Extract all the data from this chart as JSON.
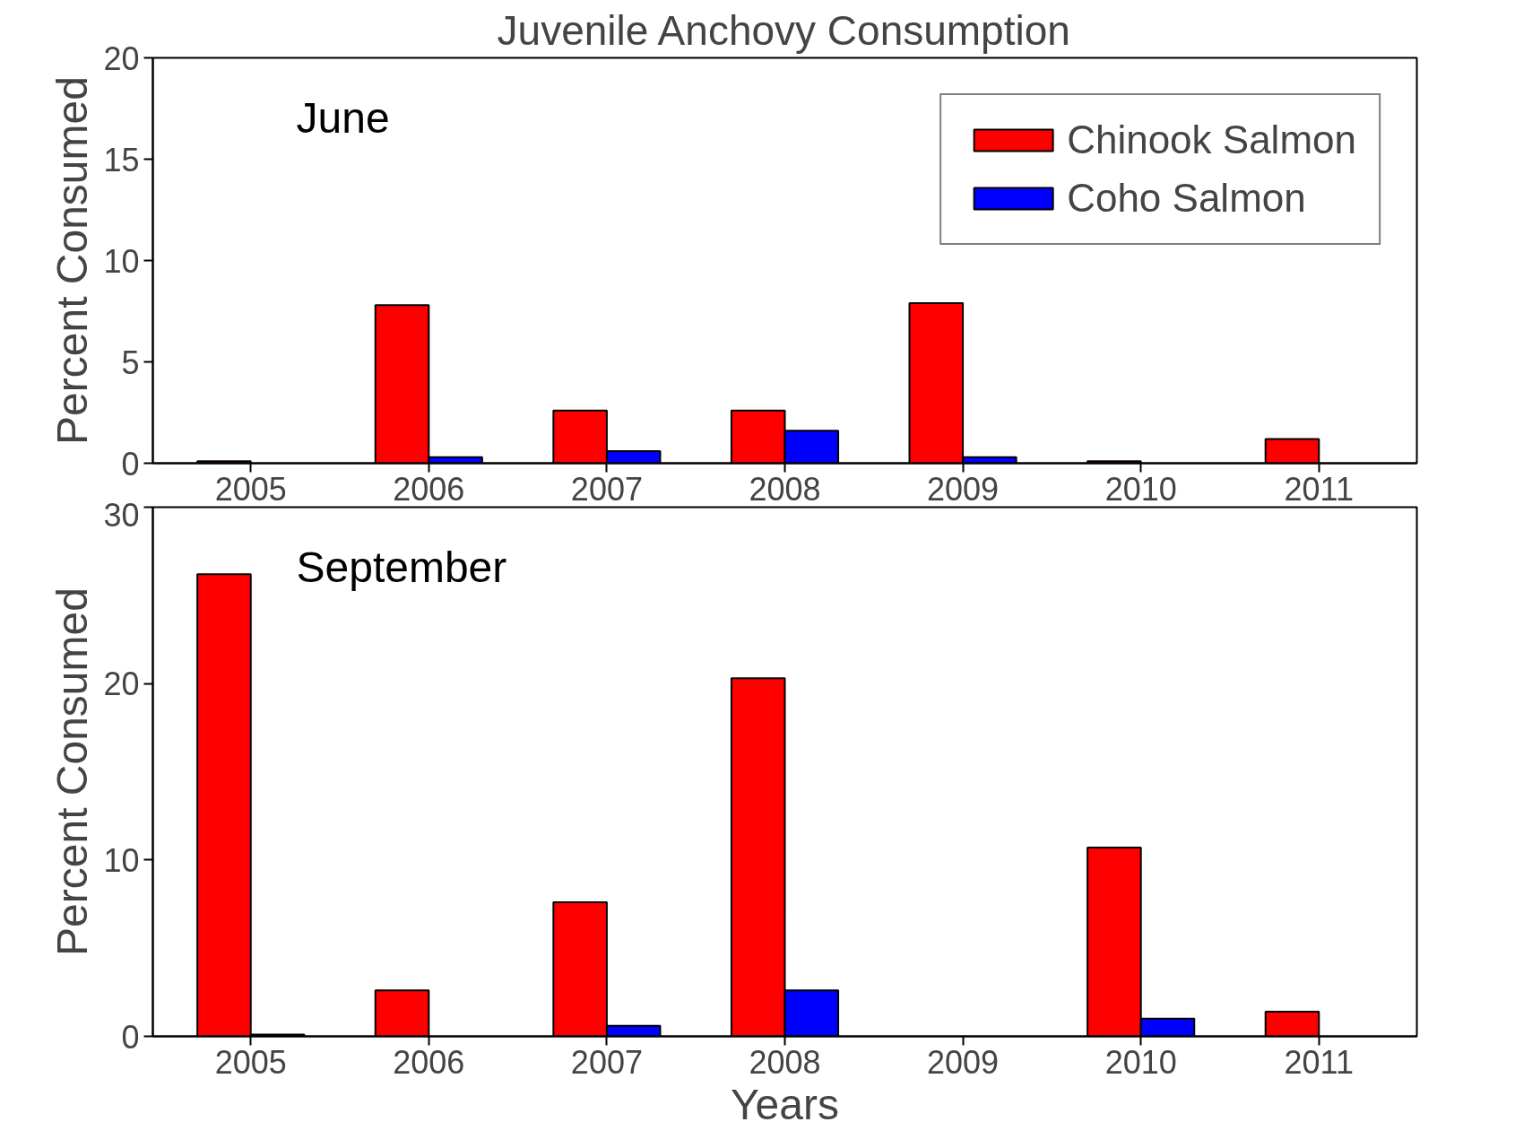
{
  "chart_data": [
    {
      "type": "bar",
      "title": "Juvenile Anchovy Consumption",
      "ylabel": "Percent Consumed",
      "categories": [
        "2005",
        "2006",
        "2007",
        "2008",
        "2009",
        "2010",
        "2011"
      ],
      "series": [
        {
          "name": "Chinook Salmon",
          "color": "#ff0000",
          "values": [
            0.1,
            7.8,
            2.6,
            2.6,
            7.9,
            0.1,
            1.2
          ]
        },
        {
          "name": "Coho Salmon",
          "color": "#0000ff",
          "values": [
            null,
            0.3,
            0.6,
            1.6,
            0.3,
            null,
            null
          ]
        }
      ],
      "ylim": [
        0,
        20
      ],
      "yticks": [
        0,
        5,
        10,
        15,
        20
      ],
      "annotations": [
        "June"
      ],
      "legend": "top right",
      "grid": false
    },
    {
      "type": "bar",
      "xlabel": "Years",
      "ylabel": "Percent Consumed",
      "categories": [
        "2005",
        "2006",
        "2007",
        "2008",
        "2009",
        "2010",
        "2011"
      ],
      "series": [
        {
          "color": "#ff0000",
          "values": [
            26.2,
            2.6,
            7.6,
            20.3,
            null,
            10.7,
            1.4
          ]
        },
        {
          "color": "#0000ff",
          "values": [
            0.1,
            null,
            0.6,
            2.6,
            null,
            1.0,
            null
          ]
        }
      ],
      "ylim": [
        0,
        30
      ],
      "yticks": [
        0,
        10,
        20,
        30
      ],
      "annotations": [
        "September"
      ],
      "grid": false
    }
  ]
}
